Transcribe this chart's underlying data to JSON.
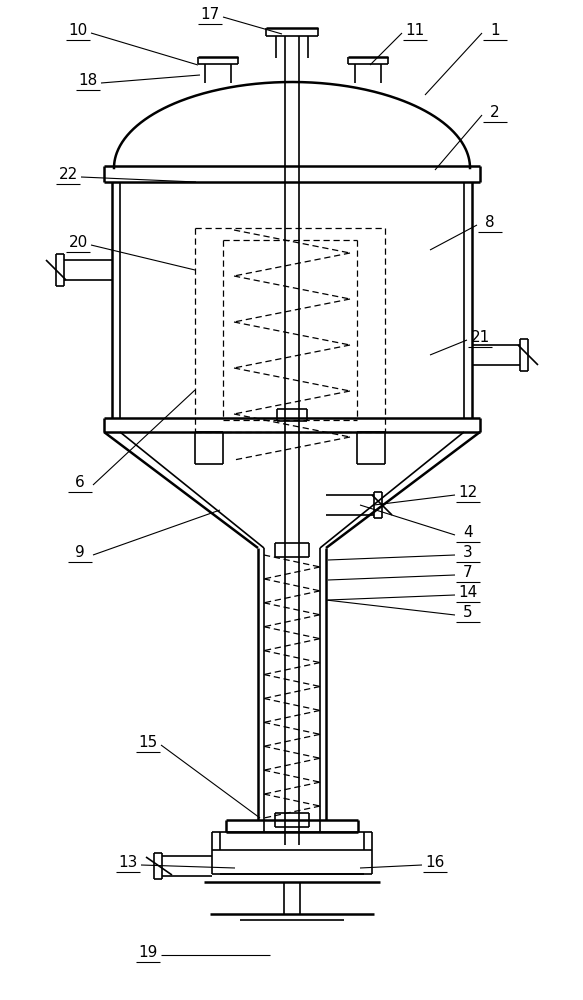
{
  "bg_color": "#ffffff",
  "line_color": "#000000",
  "fig_width": 5.83,
  "fig_height": 10.0,
  "lw": 1.2,
  "lw_thick": 1.8,
  "lw_thin": 0.9
}
